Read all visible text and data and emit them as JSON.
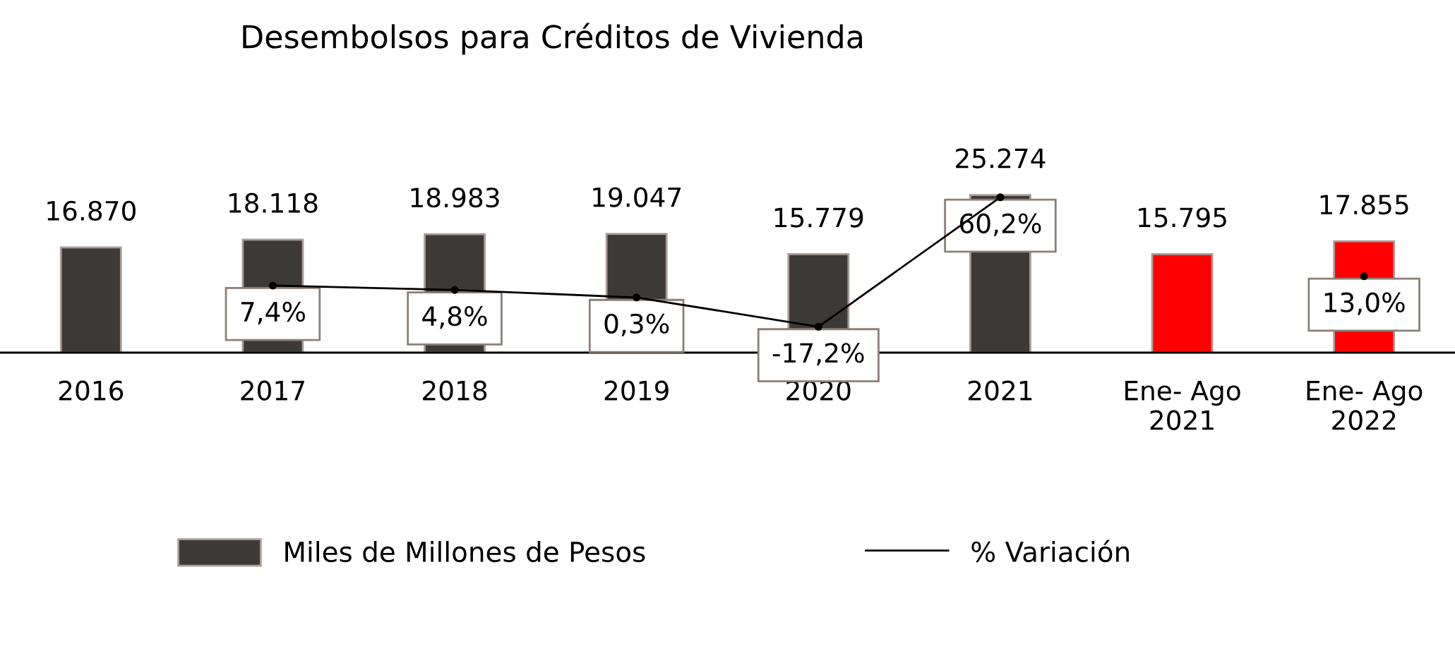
{
  "chart_data": {
    "type": "bar",
    "title": "Desembolsos para Créditos de Vivienda",
    "categories": [
      "2016",
      "2017",
      "2018",
      "2019",
      "2020",
      "2021",
      "Ene- Ago\n2021",
      "Ene- Ago\n2022"
    ],
    "tick_labels": "x",
    "grid": false,
    "legend": "bottom",
    "series": [
      {
        "name": "Miles de Millones de Pesos",
        "color": "#3d3937",
        "colors": [
          "#3d3937",
          "#3d3937",
          "#3d3937",
          "#3d3937",
          "#3d3937",
          "#3d3937",
          "#ff0000",
          "#ff0000"
        ],
        "values": [
          16870,
          18118,
          18983,
          19047,
          15779,
          25274,
          15795,
          17855
        ],
        "value_labels": [
          "16.870",
          "18.118",
          "18.983",
          "19.047",
          "15.779",
          "25.274",
          "15.795",
          "17.855"
        ]
      },
      {
        "name": "% Variación",
        "type": "line",
        "axis": "y2",
        "color": "#000000",
        "line_style": "solid",
        "marker": "circle",
        "values": [
          null,
          7.4,
          4.8,
          0.3,
          -17.2,
          60.2,
          null,
          13.0
        ],
        "value_labels": [
          null,
          "7,4%",
          "4,8%",
          "0,3%",
          "-17,2%",
          "60,2%",
          null,
          "13,0%"
        ]
      }
    ]
  }
}
